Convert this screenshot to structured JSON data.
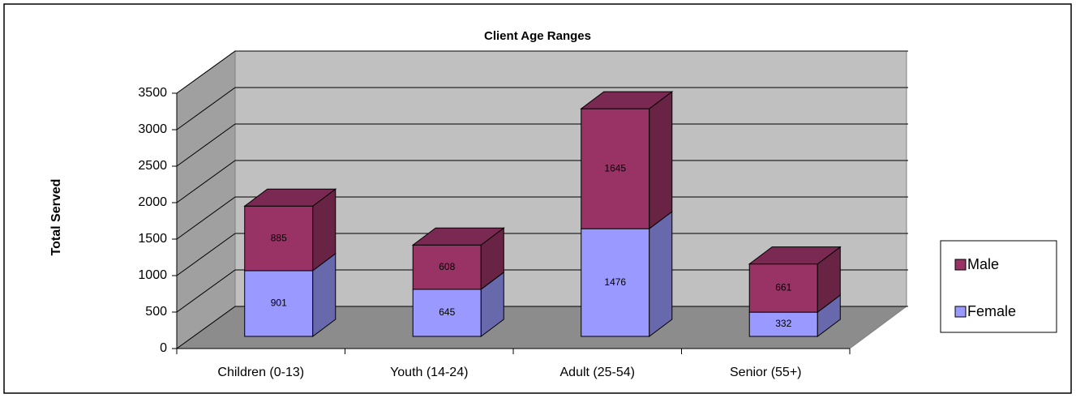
{
  "chart_data": {
    "type": "bar3d_stacked",
    "title": "Client Age Ranges",
    "y_label": "Total Served",
    "categories": [
      "Children (0-13)",
      "Youth (14-24)",
      "Adult (25-54)",
      "Senior (55+)"
    ],
    "series": [
      {
        "name": "Female",
        "color": "#9999ff",
        "values": [
          901,
          645,
          1476,
          332
        ]
      },
      {
        "name": "Male",
        "color": "#993366",
        "values": [
          885,
          608,
          1645,
          661
        ]
      }
    ],
    "ylim": [
      0,
      3500
    ],
    "yticks": [
      0,
      500,
      1000,
      1500,
      2000,
      2500,
      3000,
      3500
    ],
    "grid": true
  }
}
